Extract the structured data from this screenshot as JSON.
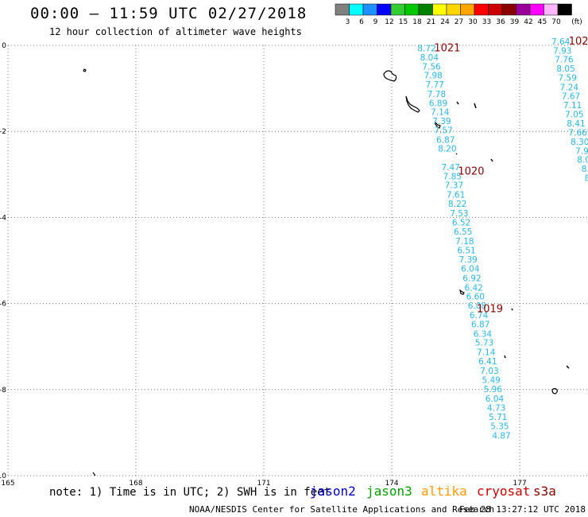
{
  "header": {
    "title": "00:00 – 11:59 UTC 02/27/2018",
    "subtitle": "12 hour collection of altimeter wave heights"
  },
  "legend": {
    "unit": "(ft)",
    "bins": [
      {
        "label": "3",
        "color": "#808080"
      },
      {
        "label": "6",
        "color": "#00ffff"
      },
      {
        "label": "9",
        "color": "#1e90ff"
      },
      {
        "label": "12",
        "color": "#0000ff"
      },
      {
        "label": "15",
        "color": "#32cd32"
      },
      {
        "label": "18",
        "color": "#00c800"
      },
      {
        "label": "21",
        "color": "#008000"
      },
      {
        "label": "24",
        "color": "#ffff00"
      },
      {
        "label": "27",
        "color": "#ffd700"
      },
      {
        "label": "30",
        "color": "#ffa500"
      },
      {
        "label": "33",
        "color": "#ff0000"
      },
      {
        "label": "36",
        "color": "#cc0000"
      },
      {
        "label": "39",
        "color": "#8b0000"
      },
      {
        "label": "42",
        "color": "#990099"
      },
      {
        "label": "45",
        "color": "#ff00ff"
      },
      {
        "label": "70",
        "color": "#ffb6ff"
      },
      {
        "label": "",
        "color": "#000000"
      }
    ]
  },
  "map": {
    "lon_ticks": [
      "165",
      "168",
      "171",
      "174",
      "177"
    ],
    "lat_ticks": [
      "0",
      "-2",
      "-4",
      "-6",
      "-8",
      "-10"
    ],
    "lon_range": [
      165,
      178.6
    ],
    "lat_range": [
      -10,
      0
    ],
    "tracks": [
      {
        "color": "#27b7e8",
        "points": [
          {
            "lon": 174.82,
            "lat": -0.14,
            "h": "8.72"
          },
          {
            "lon": 174.88,
            "lat": -0.35,
            "h": "8.04"
          },
          {
            "lon": 174.93,
            "lat": -0.56,
            "h": "7.56"
          },
          {
            "lon": 174.97,
            "lat": -0.77,
            "h": "7.98"
          },
          {
            "lon": 175.01,
            "lat": -0.98,
            "h": "7.77"
          },
          {
            "lon": 175.05,
            "lat": -1.2,
            "h": "7.78"
          },
          {
            "lon": 175.09,
            "lat": -1.41,
            "h": "6.89"
          },
          {
            "lon": 175.13,
            "lat": -1.62,
            "h": "7.14"
          },
          {
            "lon": 175.17,
            "lat": -1.83,
            "h": "7.39"
          },
          {
            "lon": 175.21,
            "lat": -2.04,
            "h": "7.57"
          },
          {
            "lon": 175.26,
            "lat": -2.26,
            "h": "6.87"
          },
          {
            "lon": 175.3,
            "lat": -2.47,
            "h": "8.20"
          },
          {
            "lon": 175.38,
            "lat": -2.9,
            "h": "7.47"
          },
          {
            "lon": 175.42,
            "lat": -3.11,
            "h": "7.85"
          },
          {
            "lon": 175.46,
            "lat": -3.32,
            "h": "7.37"
          },
          {
            "lon": 175.5,
            "lat": -3.54,
            "h": "7.61"
          },
          {
            "lon": 175.54,
            "lat": -3.75,
            "h": "8.22"
          },
          {
            "lon": 175.58,
            "lat": -3.97,
            "h": "7.53"
          },
          {
            "lon": 175.63,
            "lat": -4.19,
            "h": "6.52"
          },
          {
            "lon": 175.67,
            "lat": -4.4,
            "h": "6.55"
          },
          {
            "lon": 175.71,
            "lat": -4.62,
            "h": "7.18"
          },
          {
            "lon": 175.75,
            "lat": -4.83,
            "h": "6.51"
          },
          {
            "lon": 175.79,
            "lat": -5.05,
            "h": "7.39"
          },
          {
            "lon": 175.84,
            "lat": -5.26,
            "h": "6.04"
          },
          {
            "lon": 175.88,
            "lat": -5.48,
            "h": "6.92"
          },
          {
            "lon": 175.92,
            "lat": -5.7,
            "h": "6.42"
          },
          {
            "lon": 175.96,
            "lat": -5.91,
            "h": "6.60"
          },
          {
            "lon": 176.0,
            "lat": -6.12,
            "h": "6.08"
          },
          {
            "lon": 176.04,
            "lat": -6.34,
            "h": "6.74"
          },
          {
            "lon": 176.08,
            "lat": -6.55,
            "h": "6.87"
          },
          {
            "lon": 176.13,
            "lat": -6.77,
            "h": "6.34"
          },
          {
            "lon": 176.17,
            "lat": -6.98,
            "h": "5.73"
          },
          {
            "lon": 176.21,
            "lat": -7.2,
            "h": "7.14"
          },
          {
            "lon": 176.25,
            "lat": -7.41,
            "h": "6.41"
          },
          {
            "lon": 176.29,
            "lat": -7.63,
            "h": "7.03"
          },
          {
            "lon": 176.33,
            "lat": -7.85,
            "h": "5.49"
          },
          {
            "lon": 176.37,
            "lat": -8.06,
            "h": "5.96"
          },
          {
            "lon": 176.41,
            "lat": -8.28,
            "h": "6.04"
          },
          {
            "lon": 176.45,
            "lat": -8.49,
            "h": "4.73"
          },
          {
            "lon": 176.49,
            "lat": -8.71,
            "h": "5.71"
          },
          {
            "lon": 176.53,
            "lat": -8.92,
            "h": "5.35"
          },
          {
            "lon": 176.57,
            "lat": -9.14,
            "h": "4.87"
          }
        ]
      },
      {
        "color": "#27b7e8",
        "points": [
          {
            "lon": 177.96,
            "lat": 0.02,
            "h": "7.64"
          },
          {
            "lon": 178.0,
            "lat": -0.19,
            "h": "7.93"
          },
          {
            "lon": 178.04,
            "lat": -0.4,
            "h": "7.76"
          },
          {
            "lon": 178.08,
            "lat": -0.61,
            "h": "8.05"
          },
          {
            "lon": 178.12,
            "lat": -0.82,
            "h": "7.59"
          },
          {
            "lon": 178.16,
            "lat": -1.04,
            "h": "7.24"
          },
          {
            "lon": 178.2,
            "lat": -1.25,
            "h": "7.67"
          },
          {
            "lon": 178.24,
            "lat": -1.46,
            "h": "7.11"
          },
          {
            "lon": 178.28,
            "lat": -1.67,
            "h": "7.05"
          },
          {
            "lon": 178.32,
            "lat": -1.89,
            "h": "8.41"
          },
          {
            "lon": 178.36,
            "lat": -2.1,
            "h": "7.66"
          },
          {
            "lon": 178.41,
            "lat": -2.31,
            "h": "8.30"
          },
          {
            "lon": 178.46,
            "lat": -2.52,
            "h": "7.9"
          },
          {
            "lon": 178.5,
            "lat": -2.73,
            "h": "8.0"
          },
          {
            "lon": 178.54,
            "lat": -2.94,
            "h": "8."
          },
          {
            "lon": 178.58,
            "lat": -3.15,
            "h": "8"
          }
        ]
      }
    ],
    "pressure_labels": [
      {
        "text": "1021",
        "lon": 175.3,
        "lat": -0.14,
        "color": "#8b0000"
      },
      {
        "text": "1020",
        "lon": 175.86,
        "lat": -3.0,
        "color": "#8b0000"
      },
      {
        "text": "1019",
        "lon": 176.3,
        "lat": -6.2,
        "color": "#8b0000"
      },
      {
        "text": "102",
        "lon": 178.38,
        "lat": 0.02,
        "color": "#228b22"
      }
    ]
  },
  "footer": {
    "note": "note: 1) Time is in UTC; 2) SWH is in feet",
    "missions": [
      {
        "name": "jason2",
        "color": "#0000cd"
      },
      {
        "name": "jason3",
        "color": "#00a000"
      },
      {
        "name": "altika",
        "color": "#ff9900"
      },
      {
        "name": "cryosat",
        "color": "#cc0000"
      },
      {
        "name": "s3a",
        "color": "#8b0000"
      }
    ],
    "credit": "NOAA/NESDIS Center for Satellite Applications and Research",
    "timestamp": "Feb 28 13:27:12 UTC 2018"
  }
}
